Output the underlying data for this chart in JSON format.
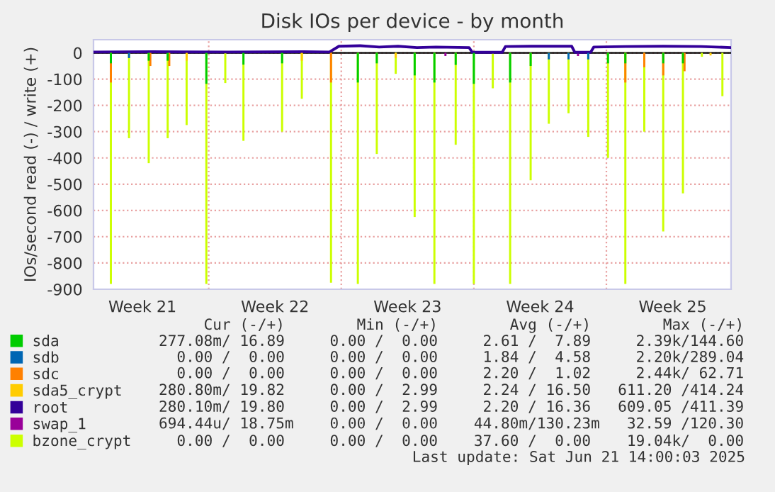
{
  "chart_data": {
    "type": "bar",
    "title": "Disk IOs per device - by month",
    "ylabel": "IOs/second read (-) / write (+)",
    "xlim": [
      "2025-05-18T22:00",
      "2025-06-21T14:00"
    ],
    "xticks": [
      {
        "value": "2025-05-21T12:00",
        "label": "Week 21"
      },
      {
        "value": "2025-05-25T00:00",
        "label": null
      },
      {
        "value": "2025-05-28T12:00",
        "label": "Week 22"
      },
      {
        "value": "2025-06-01T00:00",
        "label": null
      },
      {
        "value": "2025-06-04T12:00",
        "label": "Week 23"
      },
      {
        "value": "2025-06-08T00:00",
        "label": null
      },
      {
        "value": "2025-06-11T12:00",
        "label": "Week 24"
      },
      {
        "value": "2025-06-15T00:00",
        "label": null
      },
      {
        "value": "2025-06-18T12:00",
        "label": "Week 25"
      }
    ],
    "ylim": [
      -900,
      50
    ],
    "yticks": [
      -900,
      -800,
      -700,
      -600,
      -500,
      -400,
      -300,
      -200,
      -100,
      0
    ],
    "grid": true,
    "legend": "bottom",
    "marker": "none",
    "line_style": "solid",
    "ref_lines": [
      {
        "axis": "y",
        "value": 0,
        "color": "#000000"
      }
    ],
    "annotations": [
      "     Cur (-/+)        Min (-/+)        Avg (-/+)        Max (-/+)",
      "277.08m/ 16.89     0.00 /  0.00     2.61 /  7.89     2.39k/144.60",
      "  0.00 /  0.00     0.00 /  0.00     1.84 /  4.58     2.20k/289.04",
      "  0.00 /  0.00     0.00 /  0.00     2.20 /  1.02     2.44k/ 62.71",
      "280.80m/ 19.82     0.00 /  2.99     2.24 / 16.50   611.20 /414.24",
      "280.10m/ 19.80     0.00 /  2.99     2.20 / 16.36   609.05 /411.39",
      "694.44u/ 18.75m    0.00 /  0.00    44.80m/130.23m   32.59 /120.30",
      "  0.00 /  0.00     0.00 /  0.00    37.60 /  0.00    19.04k/  0.00",
      "Last update: Sat Jun 21 14:00:03 2025"
    ],
    "series": [
      {
        "name": "sda",
        "color": "#00cc00",
        "x": [
          "2025-05-19T20:00",
          "2025-05-21T20:00",
          "2025-05-22T20:00",
          "2025-05-24T21:00",
          "2025-05-26T20:00",
          "2025-05-28T21:00",
          "2025-06-01T21:00",
          "2025-06-02T21:00",
          "2025-06-04T21:00",
          "2025-06-05T22:00",
          "2025-06-07T01:00",
          "2025-06-08T00:00",
          "2025-06-09T22:00",
          "2025-06-11T00:00",
          "2025-06-15T02:00",
          "2025-06-16T00:00",
          "2025-06-18T00:00",
          "2025-06-19T01:00"
        ],
        "values": [
          -40,
          -30,
          -30,
          -118,
          -45,
          -40,
          -113,
          -40,
          -86,
          -113,
          -46,
          -118,
          -113,
          -50,
          -40,
          -40,
          -40,
          -40
        ]
      },
      {
        "name": "sdb",
        "color": "#0066b3",
        "x": [
          "2025-05-20T19:00",
          "2025-06-11T23:00",
          "2025-06-13T00:00",
          "2025-06-14T01:00"
        ],
        "values": [
          -20,
          -25,
          -25,
          -25
        ]
      },
      {
        "name": "sdc",
        "color": "#ff8000",
        "x": [
          "2025-05-19T20:00",
          "2025-05-21T22:00",
          "2025-05-22T22:00",
          "2025-05-31T11:00",
          "2025-06-16T00:00",
          "2025-06-17T00:00",
          "2025-06-18T00:00",
          "2025-06-19T03:00"
        ],
        "values": [
          -113,
          -50,
          -50,
          -113,
          -113,
          -55,
          -86,
          -70
        ]
      },
      {
        "name": "sda5_crypt",
        "color": "#ffcc00",
        "x": [
          "2025-05-23T20:00",
          "2025-05-29T22:00",
          "2025-06-03T21:00",
          "2025-06-20T12:00"
        ],
        "values": [
          -30,
          -30,
          -20,
          -10
        ]
      },
      {
        "name": "root",
        "color": "#330099",
        "type": "line",
        "x": [
          "2025-05-18T22:00",
          "2025-05-22T00:00",
          "2025-05-26T00:00",
          "2025-05-30T00:00",
          "2025-05-31T09:00",
          "2025-05-31T21:00",
          "2025-06-02T00:00",
          "2025-06-03T00:00",
          "2025-06-04T00:00",
          "2025-06-05T00:00",
          "2025-06-06T00:00",
          "2025-06-07T18:00",
          "2025-06-07T22:00",
          "2025-06-09T12:00",
          "2025-06-09T16:00",
          "2025-06-11T00:00",
          "2025-06-13T04:00",
          "2025-06-13T08:00",
          "2025-06-14T04:00",
          "2025-06-14T08:00",
          "2025-06-16T00:00",
          "2025-06-18T00:00",
          "2025-06-20T00:00",
          "2025-06-21T14:00"
        ],
        "values": [
          3,
          4,
          3,
          4,
          3,
          25,
          27,
          22,
          25,
          20,
          22,
          20,
          2,
          2,
          24,
          25,
          25,
          2,
          2,
          22,
          24,
          25,
          24,
          20
        ]
      },
      {
        "name": "swap_1",
        "color": "#990099",
        "x": [
          "2025-06-06T12:00",
          "2025-06-13T12:00"
        ],
        "values": [
          -12,
          -12
        ]
      },
      {
        "name": "bzone_crypt",
        "color": "#ccff00",
        "x": [
          "2025-05-19T20:00",
          "2025-05-20T19:00",
          "2025-05-21T20:00",
          "2025-05-22T20:00",
          "2025-05-23T20:00",
          "2025-05-24T21:00",
          "2025-05-25T21:00",
          "2025-05-26T20:00",
          "2025-05-28T21:00",
          "2025-05-29T22:00",
          "2025-05-31T11:00",
          "2025-06-01T21:00",
          "2025-06-02T21:00",
          "2025-06-03T21:00",
          "2025-06-04T21:00",
          "2025-06-05T22:00",
          "2025-06-07T01:00",
          "2025-06-08T00:00",
          "2025-06-09T00:00",
          "2025-06-09T22:00",
          "2025-06-11T00:00",
          "2025-06-11T23:00",
          "2025-06-13T00:00",
          "2025-06-14T01:00",
          "2025-06-15T02:00",
          "2025-06-16T00:00",
          "2025-06-17T00:00",
          "2025-06-18T00:00",
          "2025-06-19T01:00",
          "2025-06-20T01:00",
          "2025-06-21T03:00"
        ],
        "values": [
          -880,
          -325,
          -420,
          -325,
          -275,
          -880,
          -115,
          -335,
          -300,
          -175,
          -875,
          -880,
          -385,
          -80,
          -625,
          -880,
          -350,
          -880,
          -135,
          -880,
          -485,
          -270,
          -230,
          -320,
          -400,
          -880,
          -300,
          -680,
          -535,
          -15,
          -165
        ]
      }
    ]
  }
}
